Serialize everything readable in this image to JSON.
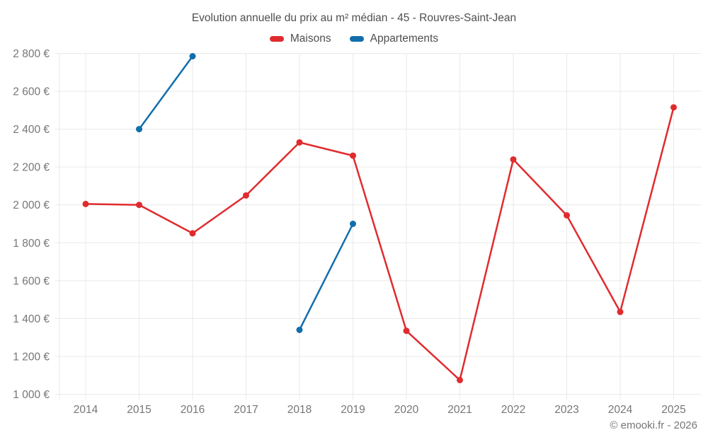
{
  "footer": {
    "text": "© emooki.fr - 2026"
  },
  "colors": {
    "background": "#ffffff",
    "title_text": "#4f4f4f",
    "axis_text": "#767676",
    "gridline": "#e9e9e9",
    "maisons": "#e02b2e",
    "appartements": "#116eab"
  },
  "chart_data": {
    "type": "line",
    "title": "Evolution annuelle du prix au m² médian - 45 - Rouvres-Saint-Jean",
    "categories": [
      2014,
      2015,
      2016,
      2017,
      2018,
      2019,
      2020,
      2021,
      2022,
      2023,
      2024,
      2025
    ],
    "series": [
      {
        "name": "Maisons",
        "color_key": "maisons",
        "values": [
          2005,
          2000,
          1850,
          2050,
          2330,
          2260,
          1335,
          1075,
          2240,
          1945,
          1435,
          2515
        ]
      },
      {
        "name": "Appartements",
        "color_key": "appartements",
        "values": [
          null,
          2400,
          2785,
          null,
          1340,
          1900,
          null,
          null,
          null,
          null,
          null,
          null
        ]
      }
    ],
    "ylim": [
      1000,
      2800
    ],
    "y_tick_step": 200,
    "y_tick_suffix": " €",
    "grid": true,
    "legend_position": "top-center"
  }
}
